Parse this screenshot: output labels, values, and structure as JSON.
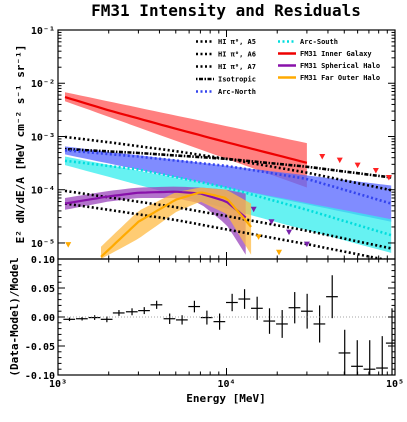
{
  "chart_data": [
    {
      "type": "line",
      "title": "FM31 Intensity and Residuals",
      "xlabel": "",
      "ylabel": "E² dN/dE/A [MeV cm⁻² s⁻¹ sr⁻¹]",
      "x_scale": "log",
      "y_scale": "log",
      "xlim": [
        1000,
        100000
      ],
      "ylim": [
        5e-06,
        0.1
      ],
      "xticks": [
        "10³",
        "10⁴",
        "10⁵"
      ],
      "yticks": [
        "10⁻¹",
        "10⁻²",
        "10⁻³",
        "10⁻⁴",
        "10⁻⁵"
      ],
      "legend_position": "top-right",
      "series": [
        {
          "name": "HI π⁰, A5",
          "style": "dotted",
          "color": "#000000",
          "x": [
            1100,
            2000,
            5000,
            10000,
            30000,
            95000
          ],
          "y": [
            0.00098,
            0.00078,
            0.00053,
            0.00038,
            0.00021,
            9.8e-05
          ]
        },
        {
          "name": "HI π⁰, A6",
          "style": "dotted",
          "color": "#000000",
          "x": [
            1100,
            2000,
            5000,
            10000,
            30000,
            95000
          ],
          "y": [
            9.5e-05,
            7.2e-05,
            4.7e-05,
            3.2e-05,
            1.7e-05,
            7.9e-06
          ]
        },
        {
          "name": "HI π⁰, A7",
          "style": "dotted",
          "color": "#000000",
          "x": [
            1100,
            2000,
            5000,
            10000,
            30000,
            95000
          ],
          "y": [
            5.5e-05,
            4.2e-05,
            2.7e-05,
            1.8e-05,
            9.5e-06,
            4.6e-06
          ]
        },
        {
          "name": "Isotropic",
          "style": "dash-dot",
          "color": "#000000",
          "x": [
            1100,
            3000,
            10000,
            30000,
            95000
          ],
          "y": [
            0.00058,
            0.00049,
            0.00038,
            0.00027,
            0.00017
          ]
        },
        {
          "name": "Arc-North",
          "style": "dotted",
          "color": "#3344ee",
          "x": [
            1100,
            3000,
            10000,
            30000,
            95000
          ],
          "y": [
            0.00055,
            0.00042,
            0.00028,
            0.00016,
            5.5e-05
          ]
        },
        {
          "name": "Arc-South",
          "style": "dotted",
          "color": "#00dddd",
          "x": [
            1100,
            3000,
            10000,
            30000,
            95000
          ],
          "y": [
            0.00035,
            0.00024,
            0.00011,
            4.2e-05,
            1.4e-05
          ]
        },
        {
          "name": "FM31 Inner Galaxy",
          "style": "solid",
          "color": "#ee0000",
          "x": [
            1100,
            2000,
            5000,
            10000,
            30000
          ],
          "y": [
            0.0055,
            0.0031,
            0.0014,
            0.00078,
            0.00032
          ]
        },
        {
          "name": "FM31 Spherical Halo",
          "style": "solid",
          "color": "#8811aa",
          "x": [
            1100,
            2000,
            3000,
            5000,
            7000,
            10000,
            13000
          ],
          "y": [
            5.5e-05,
            7.5e-05,
            8.8e-05,
            9.2e-05,
            8.5e-05,
            6e-05,
            3e-05
          ]
        },
        {
          "name": "FM31 Far Outer Halo",
          "style": "solid",
          "color": "#ffaa00",
          "x": [
            1800,
            3000,
            5000,
            7000,
            10000,
            14000
          ],
          "y": [
            5.5e-06,
            2.5e-05,
            6.5e-05,
            9e-05,
            7e-05,
            2e-05
          ]
        }
      ],
      "bands": [
        {
          "series": "FM31 Inner Galaxy",
          "color": "#ff5555",
          "x": [
            1100,
            30000
          ],
          "upper": [
            0.0068,
            0.00075
          ],
          "lower": [
            0.0046,
            0.00011
          ]
        },
        {
          "series": "Arc-North",
          "color": "#5566ff",
          "x": [
            1100,
            95000
          ],
          "upper": [
            0.00065,
            0.00012
          ],
          "lower": [
            0.00046,
            2.5e-05
          ]
        },
        {
          "series": "Arc-South",
          "color": "#33eeee",
          "x": [
            1100,
            95000
          ],
          "upper": [
            0.00042,
            2.8e-05
          ],
          "lower": [
            0.00029,
            6.5e-06
          ]
        },
        {
          "series": "FM31 Spherical Halo",
          "color": "#9944bb",
          "x": [
            1100,
            2000,
            3000,
            5000,
            7000,
            10000,
            13000
          ],
          "upper": [
            7e-05,
            9.5e-05,
            0.00011,
            0.000115,
            0.00011,
            0.0001,
            8.5e-05
          ],
          "lower": [
            4.2e-05,
            6e-05,
            7e-05,
            7e-05,
            5.5e-05,
            2.2e-05,
            6e-06
          ]
        },
        {
          "series": "FM31 Far Outer Halo",
          "color": "#ffbb44",
          "x": [
            1800,
            3000,
            5000,
            7000,
            10000,
            14000
          ],
          "upper": [
            8.5e-06,
            4e-05,
            9e-05,
            0.00011,
            0.0001,
            5.5e-05
          ],
          "lower": [
            5e-06,
            1.2e-05,
            3.8e-05,
            6e-05,
            3.5e-05,
            6e-06
          ]
        }
      ],
      "markers": [
        {
          "color": "#ff2222",
          "x": [
            37000,
            47000,
            60000,
            77000,
            92000
          ],
          "y": [
            0.00042,
            0.00036,
            0.00029,
            0.00023,
            0.00017
          ]
        },
        {
          "color": "#7722aa",
          "x": [
            14500,
            18500,
            23500,
            30000
          ],
          "y": [
            4.3e-05,
            2.5e-05,
            1.6e-05,
            9.5e-06
          ]
        },
        {
          "color": "#ffaa00",
          "x": [
            1150,
            15500,
            20500
          ],
          "y": [
            9.3e-06,
            1.3e-05,
            6.7e-06
          ]
        }
      ]
    },
    {
      "type": "scatter",
      "title": "",
      "xlabel": "Energy [MeV]",
      "ylabel": "(Data-Model)/Model",
      "x_scale": "log",
      "xlim": [
        1000,
        100000
      ],
      "ylim": [
        -0.1,
        0.1
      ],
      "xticks": [
        "10³",
        "10⁴",
        "10⁵"
      ],
      "yticks": [
        "0.10",
        "0.05",
        "0.00",
        "-0.05",
        "-0.10"
      ],
      "reference_line": 0,
      "points": [
        {
          "x": 1170,
          "y": -0.004,
          "yerr": 0.003
        },
        {
          "x": 1390,
          "y": -0.003,
          "yerr": 0.003
        },
        {
          "x": 1650,
          "y": -0.001,
          "yerr": 0.004
        },
        {
          "x": 1950,
          "y": -0.004,
          "yerr": 0.005
        },
        {
          "x": 2300,
          "y": 0.007,
          "yerr": 0.005
        },
        {
          "x": 2750,
          "y": 0.009,
          "yerr": 0.006
        },
        {
          "x": 3250,
          "y": 0.011,
          "yerr": 0.006
        },
        {
          "x": 3850,
          "y": 0.021,
          "yerr": 0.007
        },
        {
          "x": 4600,
          "y": -0.003,
          "yerr": 0.009
        },
        {
          "x": 5450,
          "y": -0.005,
          "yerr": 0.008
        },
        {
          "x": 6450,
          "y": 0.018,
          "yerr": 0.01
        },
        {
          "x": 7650,
          "y": -0.001,
          "yerr": 0.012
        },
        {
          "x": 9100,
          "y": -0.008,
          "yerr": 0.014
        },
        {
          "x": 10800,
          "y": 0.025,
          "yerr": 0.015
        },
        {
          "x": 12800,
          "y": 0.031,
          "yerr": 0.017
        },
        {
          "x": 15200,
          "y": 0.015,
          "yerr": 0.02
        },
        {
          "x": 18000,
          "y": -0.007,
          "yerr": 0.022
        },
        {
          "x": 21400,
          "y": -0.012,
          "yerr": 0.024
        },
        {
          "x": 25400,
          "y": 0.016,
          "yerr": 0.027
        },
        {
          "x": 30100,
          "y": 0.01,
          "yerr": 0.03
        },
        {
          "x": 35700,
          "y": -0.012,
          "yerr": 0.032
        },
        {
          "x": 42400,
          "y": 0.035,
          "yerr": 0.037
        },
        {
          "x": 50300,
          "y": -0.062,
          "yerr": 0.04
        },
        {
          "x": 59700,
          "y": -0.085,
          "yerr": 0.045
        },
        {
          "x": 70800,
          "y": -0.09,
          "yerr": 0.05
        },
        {
          "x": 84000,
          "y": -0.088,
          "yerr": 0.055
        },
        {
          "x": 96000,
          "y": -0.045,
          "yerr": 0.06
        }
      ]
    }
  ]
}
